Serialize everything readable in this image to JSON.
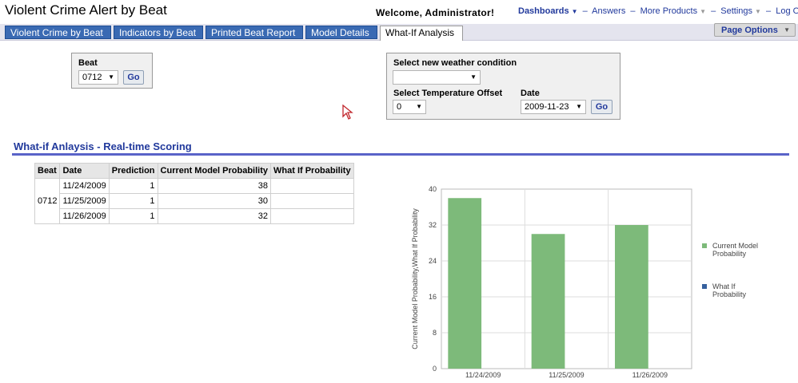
{
  "header": {
    "title": "Violent Crime Alert by Beat",
    "welcome": "Welcome, Administrator!",
    "nav": {
      "dashboards": "Dashboards",
      "answers": "Answers",
      "more_products": "More Products",
      "settings": "Settings",
      "logout": "Log Out"
    },
    "page_options": "Page Options"
  },
  "tabs": [
    {
      "label": "Violent Crime by Beat"
    },
    {
      "label": "Indicators by Beat"
    },
    {
      "label": "Printed Beat Report"
    },
    {
      "label": "Model Details"
    },
    {
      "label": "What-If Analysis"
    }
  ],
  "beat_panel": {
    "label": "Beat",
    "value": "0712",
    "go": "Go"
  },
  "weather_panel": {
    "weather_label": "Select new weather condition",
    "weather_value": "",
    "temp_label": "Select Temperature Offset",
    "temp_value": "0",
    "date_label": "Date",
    "date_value": "2009-11-23",
    "go": "Go"
  },
  "section": {
    "title": "What-if Anlaysis - Real-time Scoring"
  },
  "table": {
    "headers": [
      "Beat",
      "Date",
      "Prediction",
      "Current Model Probability",
      "What If Probability"
    ],
    "beat": "0712",
    "rows": [
      {
        "date": "11/24/2009",
        "prediction": "1",
        "current": "38",
        "whatif": ""
      },
      {
        "date": "11/25/2009",
        "prediction": "1",
        "current": "30",
        "whatif": ""
      },
      {
        "date": "11/26/2009",
        "prediction": "1",
        "current": "32",
        "whatif": ""
      }
    ]
  },
  "chart_data": {
    "type": "bar",
    "categories": [
      "11/24/2009",
      "11/25/2009",
      "11/26/2009"
    ],
    "series": [
      {
        "name": "Current Model Probability",
        "values": [
          38,
          30,
          32
        ],
        "color": "#7dba7a"
      },
      {
        "name": "What If Probability",
        "values": [
          null,
          null,
          null
        ],
        "color": "#36609e"
      }
    ],
    "ylabel": "Current Model Probability,What If Probability",
    "ylim": [
      0,
      40
    ],
    "yticks": [
      "0",
      "8",
      "16",
      "24",
      "32",
      "40"
    ],
    "grid": true,
    "legend_position": "right",
    "legend_lines": [
      [
        "Current Model",
        "Probability"
      ],
      [
        "What If",
        "Probability"
      ]
    ]
  }
}
